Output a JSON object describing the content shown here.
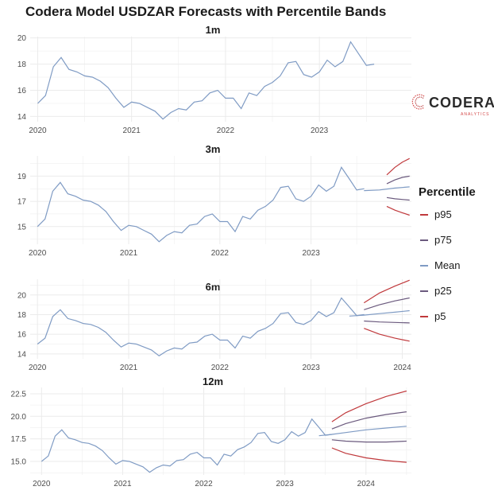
{
  "title": "Codera Model USDZAR Forecasts with Percentile Bands",
  "logo": {
    "name": "CODERA",
    "subtitle": "ANALYTICS"
  },
  "legend": {
    "title": "Percentile",
    "items": [
      {
        "label": "p95",
        "color": "#c0393c"
      },
      {
        "label": "p75",
        "color": "#6b5a7e"
      },
      {
        "label": "Mean",
        "color": "#7f9bc4"
      },
      {
        "label": "p25",
        "color": "#6b5a7e"
      },
      {
        "label": "p5",
        "color": "#c0393c"
      }
    ]
  },
  "colors": {
    "history": "#7f9bc4",
    "p95": "#c0393c",
    "p5": "#c0393c",
    "p75": "#6b5a7e",
    "p25": "#6b5a7e",
    "mean": "#7f9bc4",
    "grid": "#ebebeb"
  },
  "chart_data": [
    {
      "type": "line",
      "title": "1m",
      "xlim": [
        2019.92,
        2023.98
      ],
      "ylim": [
        13.6,
        20.1
      ],
      "x_ticks": [
        {
          "value": 2020,
          "label": "2020"
        },
        {
          "value": 2021,
          "label": "2021"
        },
        {
          "value": 2022,
          "label": "2022"
        },
        {
          "value": 2023,
          "label": "2023"
        }
      ],
      "y_ticks": [
        {
          "value": 14,
          "label": "14"
        },
        {
          "value": 16,
          "label": "16"
        },
        {
          "value": 18,
          "label": "18"
        },
        {
          "value": 20,
          "label": "20"
        }
      ],
      "forecast": []
    },
    {
      "type": "line",
      "title": "3m",
      "xlim": [
        2019.92,
        2024.1
      ],
      "ylim": [
        13.6,
        20.6
      ],
      "x_ticks": [
        {
          "value": 2020,
          "label": "2020"
        },
        {
          "value": 2021,
          "label": "2021"
        },
        {
          "value": 2022,
          "label": "2022"
        },
        {
          "value": 2023,
          "label": "2023"
        }
      ],
      "y_ticks": [
        {
          "value": 15,
          "label": "15"
        },
        {
          "value": 17,
          "label": "17"
        },
        {
          "value": 19,
          "label": "19"
        }
      ],
      "forecast": [
        {
          "name": "p95",
          "x": [
            2023.83,
            2023.92,
            2024.0,
            2024.08
          ],
          "y": [
            19.1,
            19.7,
            20.1,
            20.4
          ]
        },
        {
          "name": "p75",
          "x": [
            2023.83,
            2023.92,
            2024.0,
            2024.08
          ],
          "y": [
            18.4,
            18.7,
            18.9,
            19.0
          ]
        },
        {
          "name": "Mean",
          "x": [
            2023.58,
            2023.75,
            2023.92,
            2024.08
          ],
          "y": [
            17.85,
            17.9,
            18.05,
            18.15
          ]
        },
        {
          "name": "p25",
          "x": [
            2023.83,
            2023.92,
            2024.0,
            2024.08
          ],
          "y": [
            17.3,
            17.2,
            17.15,
            17.1
          ]
        },
        {
          "name": "p5",
          "x": [
            2023.83,
            2023.92,
            2024.0,
            2024.08
          ],
          "y": [
            16.6,
            16.3,
            16.1,
            15.9
          ]
        }
      ]
    },
    {
      "type": "line",
      "title": "6m",
      "xlim": [
        2019.92,
        2024.1
      ],
      "ylim": [
        13.5,
        21.6
      ],
      "x_ticks": [
        {
          "value": 2020,
          "label": "2020"
        },
        {
          "value": 2021,
          "label": "2021"
        },
        {
          "value": 2022,
          "label": "2022"
        },
        {
          "value": 2023,
          "label": "2023"
        },
        {
          "value": 2024,
          "label": "2024"
        }
      ],
      "y_ticks": [
        {
          "value": 14,
          "label": "14"
        },
        {
          "value": 16,
          "label": "16"
        },
        {
          "value": 18,
          "label": "18"
        },
        {
          "value": 20,
          "label": "20"
        }
      ],
      "forecast": [
        {
          "name": "p95",
          "x": [
            2023.58,
            2023.75,
            2023.92,
            2024.08
          ],
          "y": [
            19.2,
            20.2,
            20.9,
            21.5
          ]
        },
        {
          "name": "p75",
          "x": [
            2023.58,
            2023.75,
            2023.92,
            2024.08
          ],
          "y": [
            18.5,
            19.0,
            19.4,
            19.7
          ]
        },
        {
          "name": "Mean",
          "x": [
            2023.42,
            2023.58,
            2023.75,
            2023.92,
            2024.08
          ],
          "y": [
            17.85,
            17.95,
            18.1,
            18.25,
            18.4
          ]
        },
        {
          "name": "p25",
          "x": [
            2023.58,
            2023.75,
            2023.92,
            2024.08
          ],
          "y": [
            17.35,
            17.25,
            17.2,
            17.15
          ]
        },
        {
          "name": "p5",
          "x": [
            2023.58,
            2023.75,
            2023.92,
            2024.08
          ],
          "y": [
            16.6,
            16.0,
            15.6,
            15.3
          ]
        }
      ]
    },
    {
      "type": "line",
      "title": "12m",
      "xlim": [
        2019.86,
        2024.56
      ],
      "ylim": [
        13.5,
        23.2
      ],
      "x_ticks": [
        {
          "value": 2020,
          "label": "2020"
        },
        {
          "value": 2021,
          "label": "2021"
        },
        {
          "value": 2022,
          "label": "2022"
        },
        {
          "value": 2023,
          "label": "2023"
        },
        {
          "value": 2024,
          "label": "2024"
        }
      ],
      "y_ticks": [
        {
          "value": 15,
          "label": "15.0"
        },
        {
          "value": 17.5,
          "label": "17.5"
        },
        {
          "value": 20,
          "label": "20.0"
        },
        {
          "value": 22.5,
          "label": "22.5"
        }
      ],
      "forecast": [
        {
          "name": "p95",
          "x": [
            2023.58,
            2023.75,
            2024.0,
            2024.25,
            2024.5
          ],
          "y": [
            19.4,
            20.4,
            21.4,
            22.2,
            22.8
          ]
        },
        {
          "name": "p75",
          "x": [
            2023.58,
            2023.75,
            2024.0,
            2024.25,
            2024.5
          ],
          "y": [
            18.6,
            19.2,
            19.8,
            20.2,
            20.5
          ]
        },
        {
          "name": "Mean",
          "x": [
            2023.42,
            2023.58,
            2023.75,
            2024.0,
            2024.25,
            2024.5
          ],
          "y": [
            17.85,
            18.0,
            18.2,
            18.5,
            18.7,
            18.9
          ]
        },
        {
          "name": "p25",
          "x": [
            2023.58,
            2023.75,
            2024.0,
            2024.25,
            2024.5
          ],
          "y": [
            17.4,
            17.25,
            17.15,
            17.15,
            17.25
          ]
        },
        {
          "name": "p5",
          "x": [
            2023.58,
            2023.75,
            2024.0,
            2024.25,
            2024.5
          ],
          "y": [
            16.5,
            15.9,
            15.4,
            15.1,
            14.9
          ]
        }
      ]
    }
  ],
  "history": {
    "x": [
      2020.0,
      2020.083,
      2020.167,
      2020.25,
      2020.333,
      2020.417,
      2020.5,
      2020.583,
      2020.667,
      2020.75,
      2020.833,
      2020.917,
      2021.0,
      2021.083,
      2021.167,
      2021.25,
      2021.333,
      2021.417,
      2021.5,
      2021.583,
      2021.667,
      2021.75,
      2021.833,
      2021.917,
      2022.0,
      2022.083,
      2022.167,
      2022.25,
      2022.333,
      2022.417,
      2022.5,
      2022.583,
      2022.667,
      2022.75,
      2022.833,
      2022.917,
      2023.0,
      2023.083,
      2023.167,
      2023.25,
      2023.333,
      2023.417,
      2023.5,
      2023.583
    ],
    "y": [
      15.0,
      15.6,
      17.8,
      18.5,
      17.6,
      17.4,
      17.1,
      17.0,
      16.7,
      16.2,
      15.4,
      14.7,
      15.1,
      15.0,
      14.7,
      14.4,
      13.8,
      14.3,
      14.6,
      14.5,
      15.1,
      15.2,
      15.8,
      16.0,
      15.4,
      15.4,
      14.6,
      15.8,
      15.6,
      16.3,
      16.6,
      17.1,
      18.1,
      18.2,
      17.2,
      17.0,
      17.4,
      18.3,
      17.8,
      18.2,
      19.7,
      18.8,
      17.9,
      18.0
    ]
  }
}
